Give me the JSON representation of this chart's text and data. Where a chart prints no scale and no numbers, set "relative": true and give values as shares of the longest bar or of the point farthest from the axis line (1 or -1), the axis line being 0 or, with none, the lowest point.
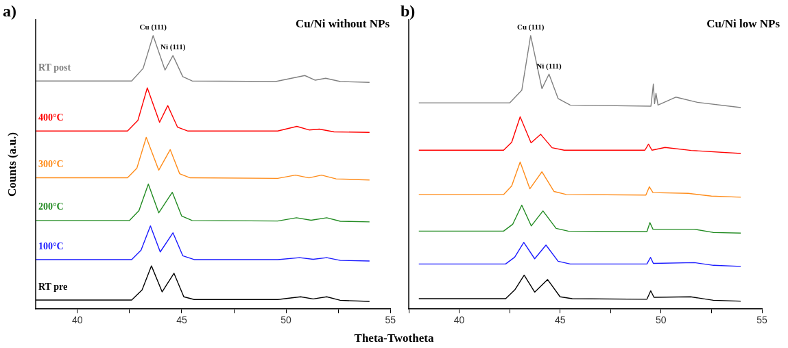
{
  "chart_data": [
    {
      "type": "line",
      "title": "Cu/Ni without NPs",
      "xlabel": "Theta-Twotheta",
      "ylabel": "Counts (a.u.)",
      "relative": true,
      "xlim": [
        38,
        55
      ],
      "xticks": [
        40,
        {
          "value": 42.5,
          "label": null
        },
        45,
        {
          "value": 47.5,
          "label": null
        },
        50,
        {
          "value": 52.5,
          "label": null
        },
        55
      ],
      "grid": false,
      "legend": false,
      "marker": "none",
      "line_style": "solid",
      "annotations": [
        "a)",
        {
          "text": "Cu (111)",
          "x": 43.63,
          "y": 1.0
        },
        {
          "text": "Ni (111)",
          "x": 44.58,
          "y": 0.927
        }
      ],
      "series": [
        {
          "name": "RT post",
          "color": "#808080",
          "x": [
            38,
            42.6,
            43.15,
            43.63,
            44.2,
            44.58,
            45.05,
            45.5,
            49.5,
            50.9,
            51.4,
            51.9,
            52.6,
            54
          ],
          "values": [
            0.834,
            0.834,
            0.88,
            1.0,
            0.874,
            0.927,
            0.85,
            0.834,
            0.832,
            0.854,
            0.837,
            0.844,
            0.832,
            0.829
          ]
        },
        {
          "name": "400°C",
          "color": "#ff0000",
          "x": [
            38,
            42.4,
            42.9,
            43.35,
            43.94,
            44.33,
            44.8,
            45.3,
            49.6,
            50.52,
            51.1,
            51.6,
            52.3,
            54
          ],
          "values": [
            0.651,
            0.651,
            0.69,
            0.809,
            0.683,
            0.744,
            0.665,
            0.651,
            0.651,
            0.668,
            0.655,
            0.658,
            0.648,
            0.646
          ]
        },
        {
          "name": "300°C",
          "color": "#ff8c1a",
          "x": [
            38,
            42.4,
            42.85,
            43.3,
            43.9,
            44.45,
            44.9,
            45.4,
            49.6,
            50.45,
            51.1,
            51.7,
            52.4,
            54
          ],
          "values": [
            0.48,
            0.48,
            0.515,
            0.628,
            0.508,
            0.583,
            0.495,
            0.48,
            0.478,
            0.49,
            0.48,
            0.49,
            0.476,
            0.472
          ]
        },
        {
          "name": "200°C",
          "color": "#228b22",
          "x": [
            38,
            42.5,
            42.95,
            43.4,
            43.9,
            44.55,
            45.0,
            45.5,
            49.6,
            50.5,
            51.2,
            51.95,
            52.6,
            54
          ],
          "values": [
            0.324,
            0.324,
            0.36,
            0.457,
            0.352,
            0.427,
            0.34,
            0.324,
            0.322,
            0.334,
            0.325,
            0.334,
            0.321,
            0.319
          ]
        },
        {
          "name": "100°C",
          "color": "#1a1aff",
          "x": [
            38,
            42.6,
            43.05,
            43.5,
            43.97,
            44.58,
            45.05,
            45.6,
            49.6,
            50.65,
            51.3,
            51.95,
            52.6,
            54
          ],
          "values": [
            0.181,
            0.181,
            0.215,
            0.304,
            0.209,
            0.279,
            0.195,
            0.181,
            0.181,
            0.188,
            0.182,
            0.188,
            0.178,
            0.176
          ]
        },
        {
          "name": "RT pre",
          "color": "#000000",
          "x": [
            38,
            42.6,
            43.1,
            43.55,
            44.06,
            44.63,
            45.1,
            45.6,
            49.6,
            50.7,
            51.3,
            51.95,
            52.6,
            54
          ],
          "values": [
            0.033,
            0.033,
            0.07,
            0.158,
            0.063,
            0.131,
            0.045,
            0.035,
            0.035,
            0.045,
            0.037,
            0.045,
            0.032,
            0.028
          ]
        }
      ]
    },
    {
      "type": "line",
      "title": "Cu/Ni low NPs",
      "relative": true,
      "xlim": [
        37.5,
        55
      ],
      "xticks": [
        {
          "value": 37.5,
          "label": null
        },
        40,
        {
          "value": 42.5,
          "label": null
        },
        45,
        {
          "value": 47.5,
          "label": null
        },
        50,
        {
          "value": 52.5,
          "label": null
        },
        55
      ],
      "grid": false,
      "legend": false,
      "marker": "none",
      "line_style": "solid",
      "annotations": [
        "b)",
        {
          "text": "Cu (111)",
          "x": 43.54,
          "y": 1.0
        },
        {
          "text": "Ni (111)",
          "x": 44.45,
          "y": 0.859
        }
      ],
      "series": [
        {
          "color": "#808080",
          "x": [
            38,
            42.5,
            43.1,
            43.54,
            44.1,
            44.45,
            44.9,
            45.5,
            49.5,
            49.62,
            49.68,
            49.75,
            49.85,
            50.73,
            51.8,
            53.95
          ],
          "values": [
            0.754,
            0.754,
            0.8,
            1.0,
            0.806,
            0.859,
            0.77,
            0.746,
            0.742,
            0.823,
            0.751,
            0.789,
            0.746,
            0.775,
            0.756,
            0.737
          ]
        },
        {
          "color": "#ff0000",
          "x": [
            38,
            42.2,
            42.6,
            43.02,
            43.56,
            44.04,
            44.6,
            45.2,
            49.2,
            49.38,
            49.55,
            50.2,
            51.5,
            53.95
          ],
          "values": [
            0.581,
            0.581,
            0.61,
            0.703,
            0.608,
            0.639,
            0.59,
            0.581,
            0.581,
            0.603,
            0.581,
            0.591,
            0.58,
            0.569
          ]
        },
        {
          "color": "#ff8c1a",
          "x": [
            38,
            42.2,
            42.6,
            43.02,
            43.5,
            44.1,
            44.7,
            45.3,
            49.25,
            49.42,
            49.6,
            51.35,
            52.5,
            53.95
          ],
          "values": [
            0.419,
            0.419,
            0.45,
            0.538,
            0.44,
            0.502,
            0.43,
            0.419,
            0.417,
            0.447,
            0.426,
            0.423,
            0.413,
            0.409
          ]
        },
        {
          "color": "#228b22",
          "x": [
            38,
            42.2,
            42.65,
            43.1,
            43.57,
            44.15,
            44.8,
            45.4,
            49.3,
            49.45,
            49.6,
            51.65,
            52.6,
            53.95
          ],
          "values": [
            0.285,
            0.285,
            0.31,
            0.38,
            0.304,
            0.359,
            0.295,
            0.285,
            0.283,
            0.316,
            0.292,
            0.292,
            0.28,
            0.278
          ]
        },
        {
          "color": "#1a1aff",
          "x": [
            38,
            42.3,
            42.75,
            43.2,
            43.74,
            44.3,
            44.9,
            45.5,
            49.3,
            49.48,
            49.62,
            51.65,
            52.6,
            53.95
          ],
          "values": [
            0.165,
            0.165,
            0.19,
            0.244,
            0.184,
            0.234,
            0.175,
            0.165,
            0.165,
            0.189,
            0.167,
            0.17,
            0.16,
            0.156
          ]
        },
        {
          "color": "#000000",
          "x": [
            38,
            42.3,
            42.75,
            43.22,
            43.74,
            44.38,
            45.0,
            45.6,
            49.3,
            49.49,
            49.65,
            51.47,
            52.6,
            53.95
          ],
          "values": [
            0.038,
            0.038,
            0.07,
            0.124,
            0.062,
            0.108,
            0.045,
            0.038,
            0.036,
            0.067,
            0.043,
            0.045,
            0.032,
            0.029
          ]
        }
      ]
    }
  ]
}
